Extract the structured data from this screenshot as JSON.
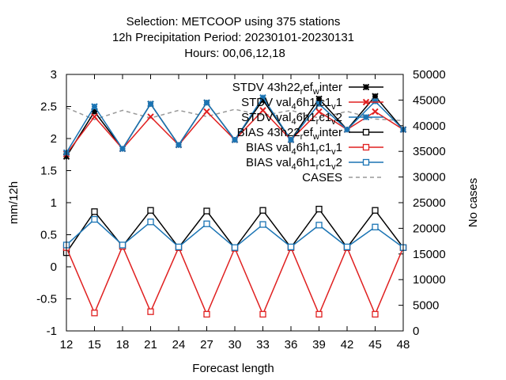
{
  "chart_data": {
    "type": "line",
    "title_lines": [
      "Selection: METCOOP using   375 stations",
      "12h Precipitation    Period: 20230101-20230131",
      "Hours:  00,06,12,18"
    ],
    "xlabel": "Forecast length",
    "ylabel": "mm/12h",
    "y2label": "No cases",
    "x": [
      12,
      15,
      18,
      21,
      24,
      27,
      30,
      33,
      36,
      39,
      42,
      45,
      48
    ],
    "xlim": [
      12,
      48
    ],
    "ylim": [
      -1,
      3
    ],
    "y2lim": [
      0,
      50000
    ],
    "xticks": [
      "12",
      "15",
      "18",
      "21",
      "24",
      "27",
      "30",
      "33",
      "36",
      "39",
      "42",
      "45",
      "48"
    ],
    "yticks": [
      "-1",
      "-0.5",
      "0",
      "0.5",
      "1",
      "1.5",
      "2",
      "2.5",
      "3"
    ],
    "y2ticks": [
      "0",
      "5000",
      "10000",
      "15000",
      "20000",
      "25000",
      "30000",
      "35000",
      "40000",
      "45000",
      "50000"
    ],
    "grid": false,
    "legend_position": "top-right",
    "series": [
      {
        "legend_parts": [
          [
            "STDV 43h22",
            ""
          ],
          [
            "r",
            "sub"
          ],
          [
            "ef",
            ""
          ],
          [
            "w",
            "sub"
          ],
          [
            "inter",
            ""
          ]
        ],
        "axis": "y",
        "color": "#000000",
        "marker": "star",
        "dash": "",
        "values": [
          1.72,
          2.42,
          1.84,
          2.54,
          1.9,
          2.56,
          1.98,
          2.6,
          1.98,
          2.62,
          2.14,
          2.66,
          2.14
        ]
      },
      {
        "legend_parts": [
          [
            "STDV val",
            ""
          ],
          [
            "4",
            "sub"
          ],
          [
            "6h1",
            ""
          ],
          [
            "r",
            "sub"
          ],
          [
            "c1",
            ""
          ],
          [
            "v",
            "sub"
          ],
          [
            "1",
            ""
          ]
        ],
        "axis": "y",
        "color": "#e02020",
        "marker": "x",
        "dash": "",
        "values": [
          1.76,
          2.34,
          1.84,
          2.34,
          1.9,
          2.42,
          1.98,
          2.44,
          1.98,
          2.42,
          2.14,
          2.42,
          2.14
        ]
      },
      {
        "legend_parts": [
          [
            "STDV val",
            ""
          ],
          [
            "4",
            "sub"
          ],
          [
            "6h1",
            ""
          ],
          [
            "r",
            "sub"
          ],
          [
            "c1",
            ""
          ],
          [
            "v",
            "sub"
          ],
          [
            "2",
            ""
          ]
        ],
        "axis": "y",
        "color": "#1a74b4",
        "marker": "star",
        "dash": "",
        "values": [
          1.78,
          2.5,
          1.84,
          2.54,
          1.9,
          2.56,
          1.98,
          2.64,
          1.98,
          2.54,
          2.14,
          2.58,
          2.14
        ]
      },
      {
        "legend_parts": [
          [
            "BIAS 43h22",
            ""
          ],
          [
            "r",
            "sub"
          ],
          [
            "ef",
            ""
          ],
          [
            "w",
            "sub"
          ],
          [
            "inter",
            ""
          ]
        ],
        "axis": "y",
        "color": "#000000",
        "marker": "square",
        "dash": "",
        "values": [
          0.22,
          0.86,
          0.32,
          0.88,
          0.3,
          0.87,
          0.29,
          0.88,
          0.3,
          0.9,
          0.3,
          0.88,
          0.3
        ]
      },
      {
        "legend_parts": [
          [
            "BIAS val",
            ""
          ],
          [
            "4",
            "sub"
          ],
          [
            "6h1",
            ""
          ],
          [
            "r",
            "sub"
          ],
          [
            "c1",
            ""
          ],
          [
            "v",
            "sub"
          ],
          [
            "1",
            ""
          ]
        ],
        "axis": "y",
        "color": "#e02020",
        "marker": "square",
        "dash": "",
        "values": [
          0.3,
          -0.72,
          0.32,
          -0.7,
          0.3,
          -0.74,
          0.29,
          -0.74,
          0.3,
          -0.74,
          0.3,
          -0.74,
          0.3
        ]
      },
      {
        "legend_parts": [
          [
            "BIAS val",
            ""
          ],
          [
            "4",
            "sub"
          ],
          [
            "6h1",
            ""
          ],
          [
            "r",
            "sub"
          ],
          [
            "c1",
            ""
          ],
          [
            "v",
            "sub"
          ],
          [
            "2",
            ""
          ]
        ],
        "axis": "y",
        "color": "#1a74b4",
        "marker": "square",
        "dash": "",
        "values": [
          0.34,
          0.74,
          0.34,
          0.7,
          0.31,
          0.67,
          0.3,
          0.66,
          0.31,
          0.65,
          0.31,
          0.62,
          0.3
        ]
      },
      {
        "legend_parts": [
          [
            "CASES",
            ""
          ]
        ],
        "axis": "y2",
        "color": "#999999",
        "marker": "none",
        "dash": "5,4",
        "values": [
          43500,
          41200,
          43000,
          41500,
          43000,
          41800,
          43200,
          42000,
          43000,
          41500,
          42800,
          41300,
          41000
        ]
      }
    ]
  }
}
